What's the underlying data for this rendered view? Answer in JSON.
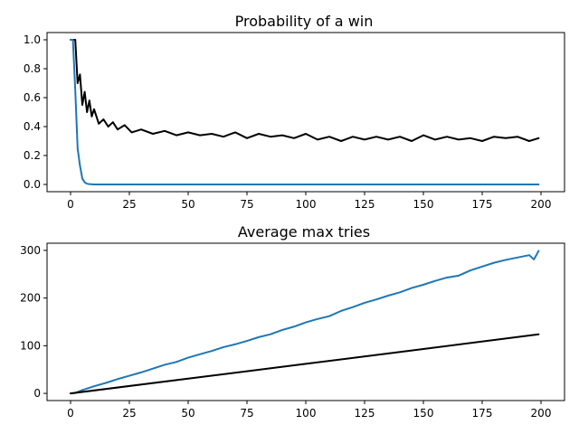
{
  "colors": {
    "black_series": "#000000",
    "blue_series": "#1f77b4"
  },
  "chart_data": [
    {
      "type": "line",
      "title": "Probability of a win",
      "xlabel": "",
      "ylabel": "",
      "xlim": [
        -10,
        210
      ],
      "ylim": [
        -0.05,
        1.05
      ],
      "xticks": [
        0,
        25,
        50,
        75,
        100,
        125,
        150,
        175,
        200
      ],
      "yticks": [
        0.0,
        0.2,
        0.4,
        0.6,
        0.8,
        1.0
      ],
      "ytick_labels": [
        "0.0",
        "0.2",
        "0.4",
        "0.6",
        "0.8",
        "1.0"
      ],
      "grid": false,
      "series": [
        {
          "color": "#000000",
          "x": [
            0,
            1,
            2,
            3,
            4,
            5,
            6,
            7,
            8,
            9,
            10,
            12,
            14,
            16,
            18,
            20,
            23,
            26,
            30,
            35,
            40,
            45,
            50,
            55,
            60,
            65,
            70,
            75,
            80,
            85,
            90,
            95,
            100,
            105,
            110,
            115,
            120,
            125,
            130,
            135,
            140,
            145,
            150,
            155,
            160,
            165,
            170,
            175,
            180,
            185,
            190,
            195,
            199
          ],
          "y": [
            1.0,
            1.0,
            1.0,
            0.7,
            0.76,
            0.55,
            0.64,
            0.5,
            0.58,
            0.47,
            0.52,
            0.42,
            0.45,
            0.4,
            0.43,
            0.38,
            0.41,
            0.36,
            0.38,
            0.35,
            0.37,
            0.34,
            0.36,
            0.34,
            0.35,
            0.33,
            0.36,
            0.32,
            0.35,
            0.33,
            0.34,
            0.32,
            0.35,
            0.31,
            0.33,
            0.3,
            0.33,
            0.31,
            0.33,
            0.31,
            0.33,
            0.3,
            0.34,
            0.31,
            0.33,
            0.31,
            0.32,
            0.3,
            0.33,
            0.32,
            0.33,
            0.3,
            0.32
          ]
        },
        {
          "color": "#1f77b4",
          "x": [
            0,
            1,
            2,
            3,
            4,
            5,
            6,
            7,
            8,
            10,
            12,
            15,
            20,
            30,
            50,
            100,
            150,
            199
          ],
          "y": [
            1.0,
            1.0,
            0.65,
            0.25,
            0.13,
            0.04,
            0.015,
            0.005,
            0.002,
            0.0,
            0.0,
            0.0,
            0.0,
            0.0,
            0.0,
            0.0,
            0.0,
            0.0
          ]
        }
      ]
    },
    {
      "type": "line",
      "title": "Average max tries",
      "xlabel": "",
      "ylabel": "",
      "xlim": [
        -10,
        210
      ],
      "ylim": [
        -15,
        315
      ],
      "xticks": [
        0,
        25,
        50,
        75,
        100,
        125,
        150,
        175,
        200
      ],
      "yticks": [
        0,
        100,
        200,
        300
      ],
      "ytick_labels": [
        "0",
        "100",
        "200",
        "300"
      ],
      "grid": false,
      "series": [
        {
          "color": "#1f77b4",
          "x": [
            0,
            2,
            5,
            10,
            15,
            20,
            25,
            30,
            35,
            40,
            45,
            50,
            55,
            60,
            65,
            70,
            75,
            80,
            85,
            90,
            95,
            100,
            105,
            110,
            115,
            120,
            125,
            130,
            135,
            140,
            145,
            150,
            155,
            160,
            165,
            170,
            175,
            180,
            185,
            190,
            195,
            197,
            199
          ],
          "y": [
            0,
            1,
            7,
            15,
            22,
            30,
            37,
            44,
            52,
            60,
            66,
            75,
            82,
            89,
            97,
            103,
            110,
            118,
            124,
            133,
            140,
            149,
            156,
            162,
            173,
            181,
            190,
            197,
            205,
            212,
            221,
            228,
            236,
            243,
            247,
            258,
            266,
            274,
            280,
            285,
            290,
            281,
            299
          ]
        },
        {
          "color": "#000000",
          "x": [
            0,
            50,
            100,
            150,
            199
          ],
          "y": [
            0,
            31,
            62,
            93,
            124
          ]
        }
      ]
    }
  ]
}
